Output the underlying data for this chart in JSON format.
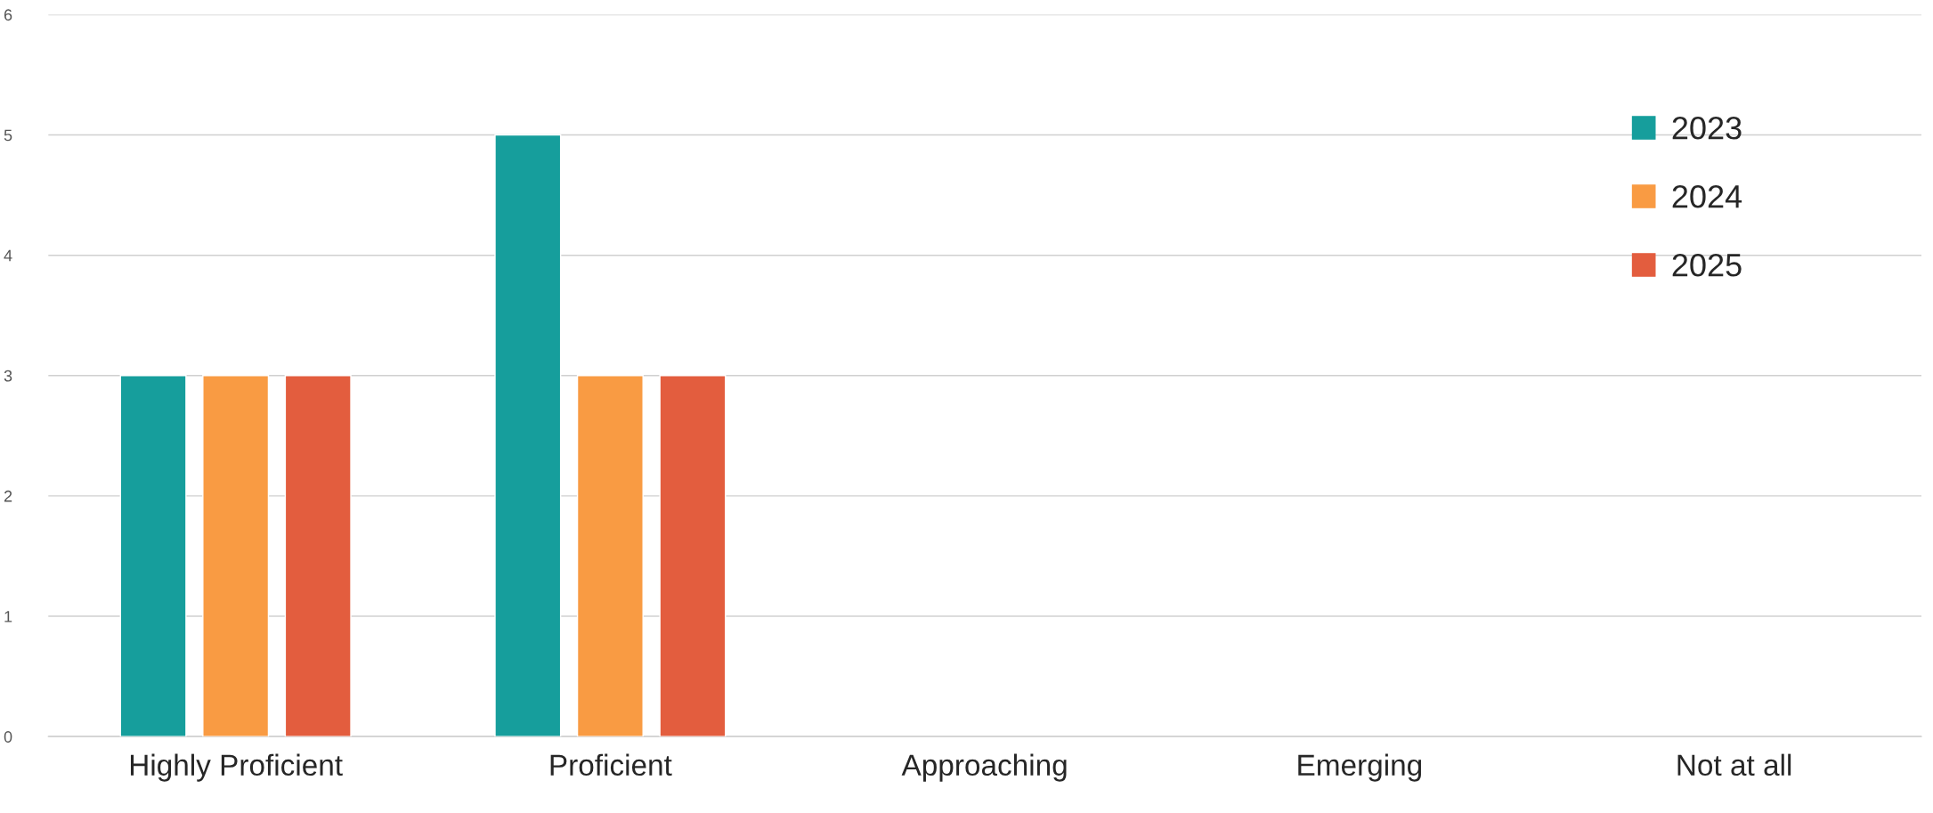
{
  "chart_data": {
    "type": "bar",
    "categories": [
      "Highly Proficient",
      "Proficient",
      "Approaching",
      "Emerging",
      "Not at all"
    ],
    "series": [
      {
        "name": "2023",
        "color": "#169e9c",
        "values": [
          3,
          5,
          0,
          0,
          0
        ]
      },
      {
        "name": "2024",
        "color": "#f99b43",
        "values": [
          3,
          3,
          0,
          0,
          0
        ]
      },
      {
        "name": "2025",
        "color": "#e35d3e",
        "values": [
          3,
          3,
          0,
          0,
          0
        ]
      }
    ],
    "ylim": [
      0,
      6
    ],
    "yticks": [
      0,
      1,
      2,
      3,
      4,
      5,
      6
    ],
    "grid": "y",
    "legend": "top right"
  }
}
